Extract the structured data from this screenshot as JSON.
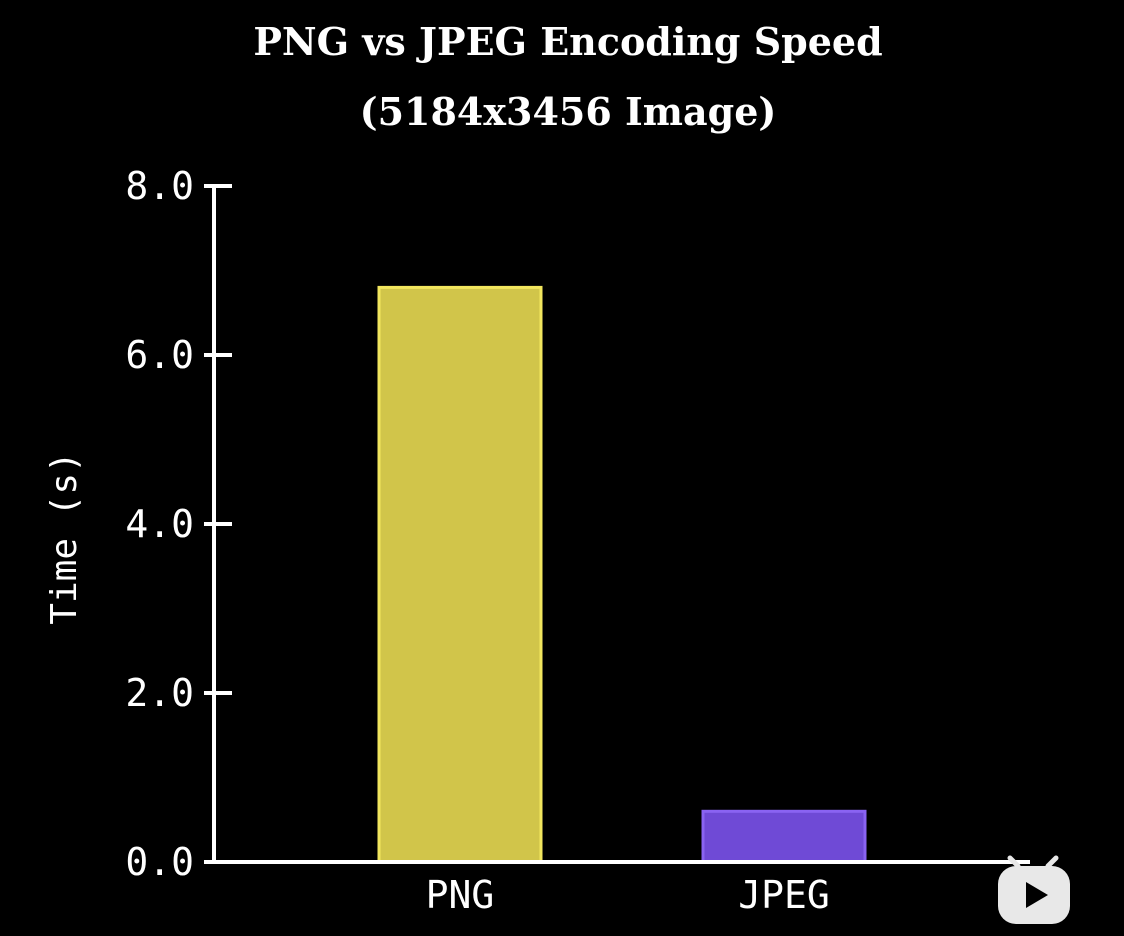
{
  "chart_data": {
    "type": "bar",
    "title": "PNG vs JPEG Encoding Speed",
    "subtitle": "(5184x3456 Image)",
    "xlabel": "",
    "ylabel": "Time (s)",
    "categories": [
      "PNG",
      "JPEG"
    ],
    "values": [
      6.8,
      0.6
    ],
    "ylim": [
      0,
      8
    ],
    "yticks": [
      "0.0",
      "2.0",
      "4.0",
      "6.0",
      "8.0"
    ],
    "ytick_values": [
      0,
      2,
      4,
      6,
      8
    ],
    "grid": false,
    "colors": {
      "bars": [
        {
          "fill": "#d1c54a",
          "stroke": "#f2e65e"
        },
        {
          "fill": "#6f4ad6",
          "stroke": "#8a63f2"
        }
      ],
      "axis": "#ffffff",
      "background": "#000000"
    }
  },
  "overlay": {
    "watermark_icon": "video-player-logo-icon"
  }
}
